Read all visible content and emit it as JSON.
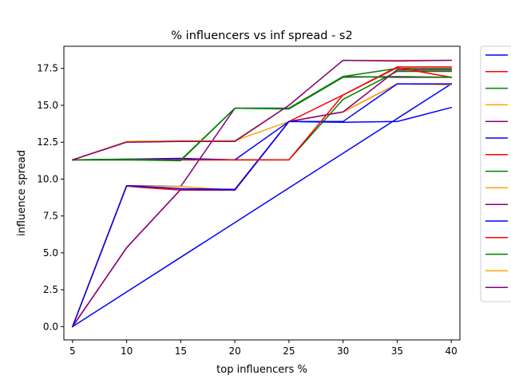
{
  "chart_data": {
    "type": "line",
    "title": "% influencers vs inf spread - s2",
    "xlabel": "top influencers %",
    "ylabel": "influence spread",
    "x": [
      5,
      10,
      15,
      20,
      25,
      30,
      35,
      40
    ],
    "xticks": [
      "5",
      "10",
      "15",
      "20",
      "25",
      "30",
      "35",
      "40"
    ],
    "yticks": [
      "0.0",
      "2.5",
      "5.0",
      "7.5",
      "10.0",
      "12.5",
      "15.0",
      "17.5"
    ],
    "xlim": [
      4.2,
      40.8
    ],
    "ylim": [
      -0.9,
      19.0
    ],
    "grid": false,
    "legend": {
      "placement": "outside-right",
      "entries": [
        "",
        "",
        "",
        "",
        "",
        "",
        "",
        "",
        "",
        "",
        "",
        "",
        "",
        "",
        ""
      ]
    },
    "series": [
      {
        "name": "",
        "color": "#0000ff",
        "values": [
          0.0,
          2.35,
          4.7,
          7.05,
          9.4,
          11.75,
          14.1,
          16.45
        ]
      },
      {
        "name": "",
        "color": "#ff0000",
        "values": [
          0.0,
          5.35,
          9.3,
          9.25,
          13.9,
          14.55,
          16.45,
          16.4
        ]
      },
      {
        "name": "",
        "color": "#008000",
        "values": [
          11.3,
          11.3,
          11.3,
          11.3,
          11.3,
          15.4,
          17.3,
          17.3
        ]
      },
      {
        "name": "",
        "color": "#ffa500",
        "values": [
          11.3,
          12.55,
          12.6,
          12.6,
          13.9,
          14.55,
          16.45,
          16.4
        ]
      },
      {
        "name": "",
        "color": "#800080",
        "values": [
          0.0,
          9.55,
          9.5,
          14.8,
          14.8,
          16.95,
          16.9,
          16.9
        ]
      },
      {
        "name": "",
        "color": "#0000ff",
        "values": [
          11.3,
          11.35,
          11.4,
          11.3,
          13.9,
          13.85,
          13.9,
          14.85
        ]
      },
      {
        "name": "",
        "color": "#ff0000",
        "values": [
          0.0,
          9.5,
          9.25,
          9.25,
          13.9,
          15.7,
          17.6,
          17.6
        ]
      },
      {
        "name": "",
        "color": "#008000",
        "values": [
          11.3,
          11.35,
          11.3,
          14.8,
          14.8,
          16.95,
          17.5,
          17.5
        ]
      },
      {
        "name": "",
        "color": "#ffa500",
        "values": [
          0.0,
          9.5,
          9.5,
          9.25,
          13.9,
          14.55,
          17.4,
          17.4
        ]
      },
      {
        "name": "",
        "color": "#800080",
        "values": [
          0.0,
          5.35,
          9.3,
          9.25,
          13.9,
          14.55,
          17.4,
          17.4
        ]
      },
      {
        "name": "",
        "color": "#0000ff",
        "values": [
          0.0,
          9.55,
          9.35,
          9.3,
          13.9,
          13.9,
          16.45,
          16.45
        ]
      },
      {
        "name": "",
        "color": "#ff0000",
        "values": [
          11.3,
          11.3,
          11.3,
          11.3,
          11.3,
          15.7,
          17.55,
          16.9
        ]
      },
      {
        "name": "",
        "color": "#008000",
        "values": [
          11.3,
          11.3,
          11.25,
          14.8,
          14.75,
          16.9,
          16.95,
          16.9
        ]
      },
      {
        "name": "",
        "color": "#ffa500",
        "values": [
          11.3,
          12.55,
          12.6,
          12.6,
          15.0,
          18.05,
          18.05,
          18.05
        ]
      },
      {
        "name": "",
        "color": "#800080",
        "values": [
          11.3,
          12.5,
          12.55,
          12.55,
          15.0,
          18.05,
          18.0,
          18.05
        ]
      }
    ]
  }
}
